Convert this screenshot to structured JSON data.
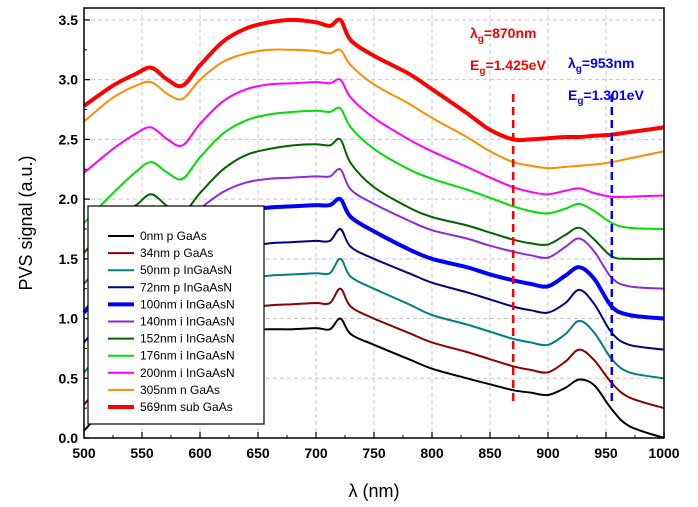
{
  "chart_data": {
    "type": "line",
    "xlabel": "λ (nm)",
    "ylabel": "PVS signal (a.u.)",
    "xlim": [
      500,
      1000
    ],
    "ylim": [
      0,
      3.6
    ],
    "xticks": [
      500,
      550,
      600,
      650,
      700,
      750,
      800,
      850,
      900,
      950,
      1000
    ],
    "yticks": [
      0.0,
      0.5,
      1.0,
      1.5,
      2.0,
      2.5,
      3.0,
      3.5
    ],
    "ytick_labels": [
      "0.0",
      "0.5",
      "1.0",
      "1.5",
      "2.0",
      "2.5",
      "3.0",
      "3.5"
    ],
    "grid": true,
    "legend_position": "bottom-left",
    "x": [
      500,
      525,
      545,
      558,
      572,
      585,
      600,
      620,
      640,
      660,
      680,
      700,
      712,
      721,
      730,
      750,
      780,
      800,
      830,
      850,
      870,
      885,
      900,
      915,
      927,
      940,
      955,
      970,
      1000
    ],
    "series": [
      {
        "name": "0nm p GaAs",
        "color": "#000000",
        "width": 2,
        "values": [
          0.06,
          0.33,
          0.55,
          0.64,
          0.62,
          0.6,
          0.72,
          0.85,
          0.9,
          0.91,
          0.91,
          0.92,
          0.91,
          1.0,
          0.87,
          0.78,
          0.66,
          0.58,
          0.5,
          0.45,
          0.4,
          0.38,
          0.36,
          0.42,
          0.49,
          0.44,
          0.24,
          0.1,
          0.0
        ]
      },
      {
        "name": "34nm p GaAs",
        "color": "#8B0000",
        "width": 2,
        "values": [
          0.28,
          0.56,
          0.82,
          0.91,
          0.85,
          0.8,
          0.92,
          1.04,
          1.09,
          1.11,
          1.12,
          1.13,
          1.13,
          1.25,
          1.1,
          1.0,
          0.88,
          0.8,
          0.72,
          0.66,
          0.6,
          0.57,
          0.55,
          0.64,
          0.74,
          0.65,
          0.46,
          0.34,
          0.25
        ]
      },
      {
        "name": "50nm p InGaAsN",
        "color": "#008080",
        "width": 2,
        "values": [
          0.55,
          0.82,
          1.05,
          1.16,
          1.08,
          1.03,
          1.15,
          1.27,
          1.33,
          1.36,
          1.37,
          1.38,
          1.38,
          1.5,
          1.35,
          1.25,
          1.12,
          1.03,
          0.95,
          0.89,
          0.83,
          0.8,
          0.78,
          0.87,
          0.98,
          0.88,
          0.66,
          0.55,
          0.5
        ]
      },
      {
        "name": "72nm p InGaAsN",
        "color": "#000080",
        "width": 2,
        "values": [
          0.8,
          1.08,
          1.3,
          1.43,
          1.35,
          1.28,
          1.4,
          1.53,
          1.6,
          1.63,
          1.64,
          1.65,
          1.65,
          1.75,
          1.6,
          1.5,
          1.38,
          1.3,
          1.22,
          1.16,
          1.1,
          1.07,
          1.05,
          1.13,
          1.24,
          1.12,
          0.88,
          0.78,
          0.74
        ]
      },
      {
        "name": "100nm i InGaAsN",
        "color": "#0000FF",
        "width": 4,
        "values": [
          1.05,
          1.35,
          1.55,
          1.7,
          1.62,
          1.55,
          1.68,
          1.82,
          1.9,
          1.93,
          1.94,
          1.95,
          1.95,
          2.0,
          1.85,
          1.73,
          1.58,
          1.5,
          1.43,
          1.37,
          1.32,
          1.29,
          1.27,
          1.36,
          1.43,
          1.33,
          1.1,
          1.03,
          1.0
        ]
      },
      {
        "name": "140nm i InGaAsN",
        "color": "#8A2BE2",
        "width": 2,
        "values": [
          1.29,
          1.58,
          1.8,
          1.94,
          1.86,
          1.79,
          1.92,
          2.06,
          2.14,
          2.17,
          2.18,
          2.19,
          2.19,
          2.25,
          2.08,
          1.96,
          1.82,
          1.74,
          1.67,
          1.61,
          1.56,
          1.53,
          1.51,
          1.6,
          1.67,
          1.56,
          1.34,
          1.27,
          1.25
        ]
      },
      {
        "name": "152nm i InGaAsN",
        "color": "#006400",
        "width": 2,
        "values": [
          1.55,
          1.82,
          1.95,
          2.04,
          1.94,
          1.88,
          2.05,
          2.25,
          2.37,
          2.42,
          2.45,
          2.46,
          2.45,
          2.5,
          2.3,
          2.1,
          1.93,
          1.85,
          1.78,
          1.72,
          1.66,
          1.63,
          1.62,
          1.7,
          1.76,
          1.66,
          1.52,
          1.5,
          1.5
        ]
      },
      {
        "name": "176nm i InGaAsN",
        "color": "#00DD00",
        "width": 2,
        "values": [
          1.8,
          2.05,
          2.23,
          2.31,
          2.22,
          2.17,
          2.35,
          2.55,
          2.66,
          2.71,
          2.73,
          2.74,
          2.73,
          2.76,
          2.6,
          2.42,
          2.25,
          2.17,
          2.08,
          2.01,
          1.94,
          1.9,
          1.88,
          1.92,
          1.96,
          1.9,
          1.8,
          1.76,
          1.75
        ]
      },
      {
        "name": "200nm i InGaAsN",
        "color": "#FF00FF",
        "width": 2,
        "values": [
          2.22,
          2.42,
          2.55,
          2.6,
          2.5,
          2.45,
          2.63,
          2.82,
          2.92,
          2.96,
          2.97,
          2.98,
          2.97,
          3.0,
          2.85,
          2.68,
          2.5,
          2.4,
          2.27,
          2.18,
          2.1,
          2.06,
          2.04,
          2.07,
          2.09,
          2.05,
          2.02,
          2.02,
          2.03
        ]
      },
      {
        "name": "305nm n GaAs",
        "color": "#FF8C00",
        "width": 2,
        "values": [
          2.65,
          2.85,
          2.95,
          2.98,
          2.88,
          2.84,
          3.0,
          3.15,
          3.22,
          3.25,
          3.25,
          3.24,
          3.22,
          3.25,
          3.12,
          2.96,
          2.8,
          2.68,
          2.52,
          2.4,
          2.31,
          2.28,
          2.26,
          2.27,
          2.28,
          2.29,
          2.31,
          2.34,
          2.4
        ]
      },
      {
        "name": "569nm sub GaAs",
        "color": "#FF0000",
        "width": 4,
        "values": [
          2.78,
          2.95,
          3.05,
          3.1,
          3.0,
          2.95,
          3.12,
          3.32,
          3.43,
          3.48,
          3.5,
          3.48,
          3.45,
          3.5,
          3.33,
          3.2,
          3.05,
          2.92,
          2.72,
          2.58,
          2.5,
          2.5,
          2.51,
          2.52,
          2.52,
          2.53,
          2.54,
          2.56,
          2.6
        ]
      }
    ],
    "annotations": [
      {
        "lambda_text": "λ",
        "lambda_sub": "g",
        "lambda_value": "=870nm",
        "energy_text": "E",
        "energy_sub": "g",
        "energy_value": "=1.425eV",
        "x": 870,
        "color": "#FF0000"
      },
      {
        "lambda_text": "λ",
        "lambda_sub": "g",
        "lambda_value": "=953nm",
        "energy_text": "E",
        "energy_sub": "g",
        "energy_value": "=1.301eV",
        "x": 955,
        "color": "#0000FF"
      }
    ]
  }
}
